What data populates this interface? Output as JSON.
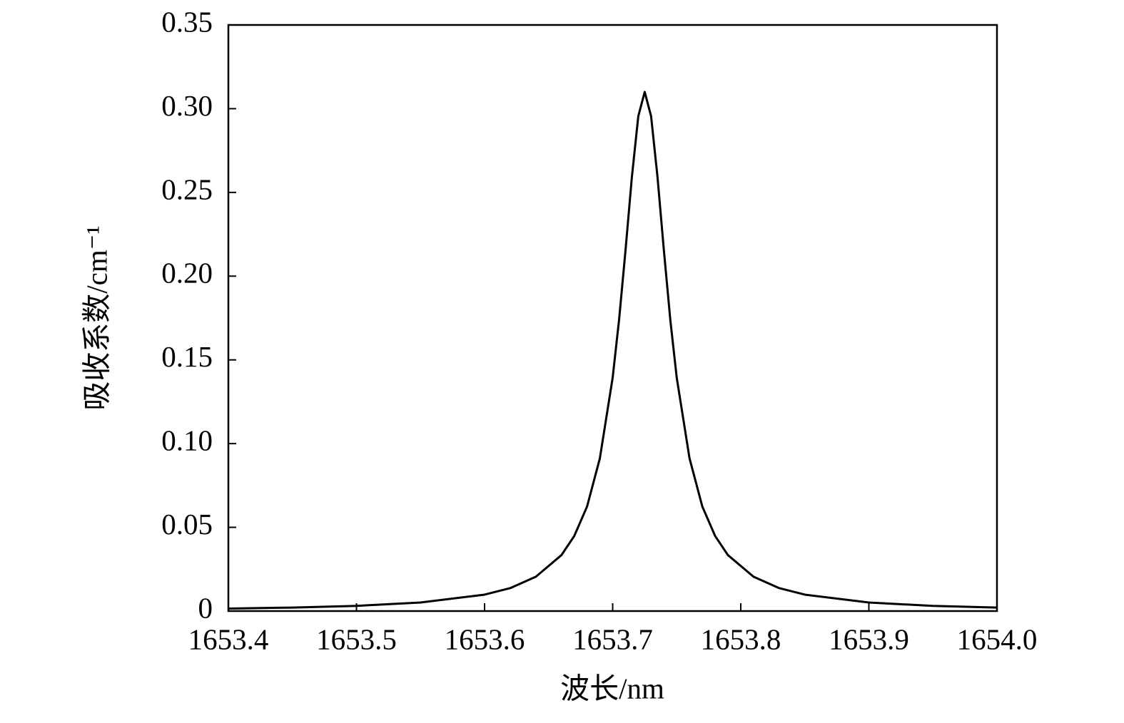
{
  "chart_data": {
    "type": "line",
    "xlabel": "波长/nm",
    "ylabel": "吸收系数/cm⁻¹",
    "x": [
      1653.4,
      1653.45,
      1653.5,
      1653.55,
      1653.6,
      1653.62,
      1653.64,
      1653.66,
      1653.67,
      1653.68,
      1653.69,
      1653.7,
      1653.705,
      1653.71,
      1653.715,
      1653.72,
      1653.725,
      1653.73,
      1653.735,
      1653.74,
      1653.745,
      1653.75,
      1653.76,
      1653.77,
      1653.78,
      1653.79,
      1653.81,
      1653.83,
      1653.85,
      1653.9,
      1653.95,
      1654.0
    ],
    "series": [
      {
        "color": "#000000",
        "values": [
          0.0015,
          0.0021,
          0.0031,
          0.0051,
          0.0098,
          0.0137,
          0.0205,
          0.0334,
          0.0448,
          0.0624,
          0.0912,
          0.1394,
          0.1739,
          0.2152,
          0.2592,
          0.2955,
          0.31,
          0.2955,
          0.2592,
          0.2152,
          0.1739,
          0.1394,
          0.0912,
          0.0624,
          0.0448,
          0.0334,
          0.0205,
          0.0137,
          0.0098,
          0.0051,
          0.0031,
          0.0021
        ]
      }
    ],
    "xlim": [
      1653.4,
      1654.0
    ],
    "xticks": [
      1653.4,
      1653.5,
      1653.6,
      1653.7,
      1653.8,
      1653.9,
      {
        "value": 1654.0,
        "label": "1654.0"
      }
    ],
    "ylim": [
      0,
      0.35
    ],
    "yticks": [
      0,
      0.05,
      {
        "value": 0.1,
        "label": "0.10"
      },
      0.15,
      {
        "value": 0.2,
        "label": "0.20"
      },
      0.25,
      {
        "value": 0.3,
        "label": "0.30"
      },
      0.35
    ],
    "grid": false
  }
}
